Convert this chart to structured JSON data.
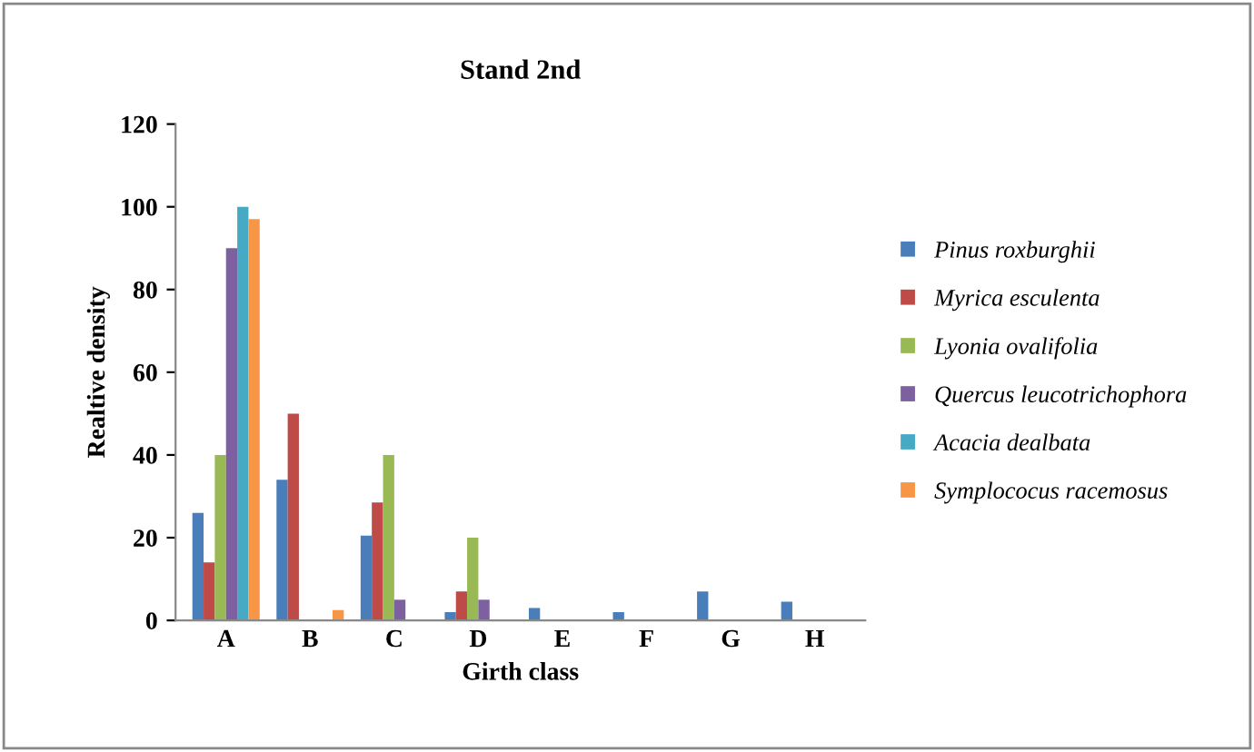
{
  "chart_data": {
    "type": "bar",
    "title": "Stand 2nd",
    "xlabel": "Girth class",
    "ylabel": "Realtive density",
    "categories": [
      "A",
      "B",
      "C",
      "D",
      "E",
      "F",
      "G",
      "H"
    ],
    "series": [
      {
        "name": "Pinus roxburghii",
        "color": "#4a7ebb",
        "values": [
          26,
          34,
          20.5,
          2,
          3,
          2,
          7,
          4.5
        ]
      },
      {
        "name": "Myrica esculenta",
        "color": "#be4b48",
        "values": [
          14,
          50,
          28.5,
          7,
          0,
          0,
          0,
          0
        ]
      },
      {
        "name": "Lyonia ovalifolia",
        "color": "#98b954",
        "values": [
          40,
          0,
          40,
          20,
          0,
          0,
          0,
          0
        ]
      },
      {
        "name": "Quercus leucotrichophora",
        "color": "#7d60a0",
        "values": [
          90,
          0,
          5,
          5,
          0,
          0,
          0,
          0
        ]
      },
      {
        "name": "Acacia dealbata",
        "color": "#46aac5",
        "values": [
          100,
          0,
          0,
          0,
          0,
          0,
          0,
          0
        ]
      },
      {
        "name": "Symplococus racemosus",
        "color": "#f79646",
        "values": [
          97,
          2.5,
          0,
          0,
          0,
          0,
          0,
          0
        ]
      }
    ],
    "ylim": [
      0,
      120
    ],
    "yticks": [
      0,
      20,
      40,
      60,
      80,
      100,
      120
    ],
    "grid": false,
    "legend": "right"
  }
}
